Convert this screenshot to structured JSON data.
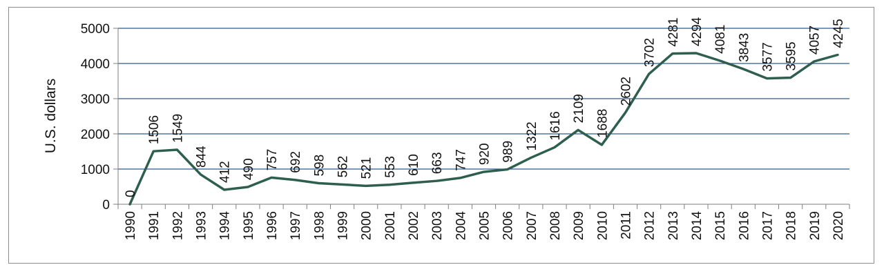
{
  "chart_data": {
    "type": "line",
    "title": "",
    "xlabel": "",
    "ylabel": "U.S. dollars",
    "ylim": [
      0,
      5000
    ],
    "yticks": [
      0,
      1000,
      2000,
      3000,
      4000,
      5000
    ],
    "grid": true,
    "legend": "none",
    "x": [
      "1990",
      "1991",
      "1992",
      "1993",
      "1994",
      "1995",
      "1996",
      "1997",
      "1998",
      "1999",
      "2000",
      "2001",
      "2002",
      "2003",
      "2004",
      "2005",
      "2006",
      "2007",
      "2008",
      "2009",
      "2010",
      "2011",
      "2012",
      "2013",
      "2014",
      "2015",
      "2016",
      "2017",
      "2018",
      "2019",
      "2020"
    ],
    "series": [
      {
        "values": [
          0,
          1506,
          1549,
          844,
          412,
          490,
          757,
          692,
          598,
          562,
          521,
          553,
          610,
          663,
          747,
          920,
          989,
          1322,
          1616,
          2109,
          1688,
          2602,
          3702,
          4281,
          4294,
          4081,
          3843,
          3577,
          3595,
          4057,
          4245
        ],
        "color": "#2e5e4e"
      }
    ],
    "colors": {
      "line": "#2e5e4e",
      "grid": "#2f5b8f",
      "axis": "#7f7f7f"
    }
  }
}
